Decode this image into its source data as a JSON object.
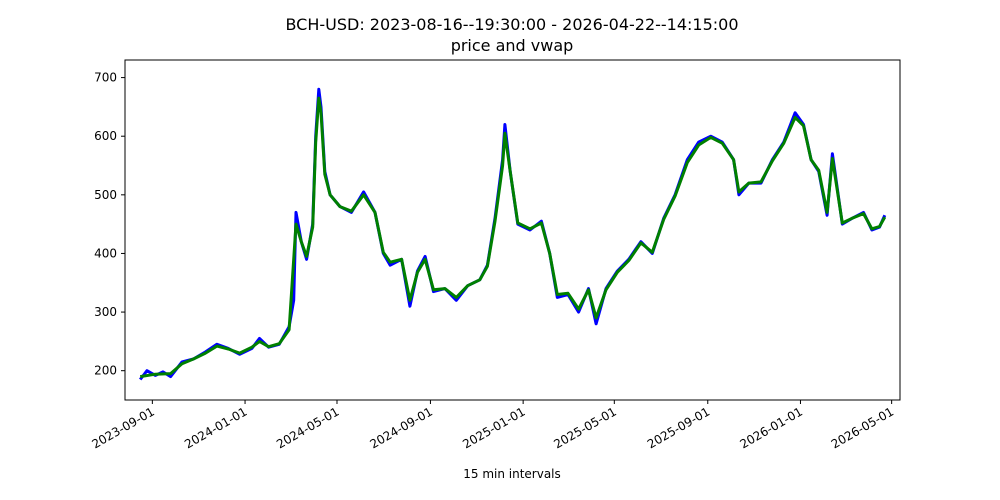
{
  "chart_data": {
    "type": "line",
    "title": "BCH-USD: 2023-08-16--19:30:00 - 2026-04-22--14:15:00",
    "subtitle": "price and vwap",
    "xlabel": "15 min intervals",
    "ylabel": "",
    "x_range": [
      "2023-08-16",
      "2026-04-22"
    ],
    "xlim": [
      "2023-07-27",
      "2026-05-12"
    ],
    "ylim": [
      150,
      730
    ],
    "x_ticks": [
      "2023-09-01",
      "2024-01-01",
      "2024-05-01",
      "2024-09-01",
      "2025-01-01",
      "2025-05-01",
      "2025-09-01",
      "2026-01-01",
      "2026-05-01"
    ],
    "y_ticks": [
      200,
      300,
      400,
      500,
      600,
      700
    ],
    "grid": false,
    "legend": "none",
    "series": [
      {
        "color": "#0000ff",
        "role": "price",
        "points": [
          [
            "2023-08-16",
            185
          ],
          [
            "2023-08-25",
            200
          ],
          [
            "2023-09-05",
            192
          ],
          [
            "2023-09-15",
            198
          ],
          [
            "2023-09-25",
            190
          ],
          [
            "2023-10-10",
            215
          ],
          [
            "2023-10-25",
            220
          ],
          [
            "2023-11-10",
            232
          ],
          [
            "2023-11-25",
            245
          ],
          [
            "2023-12-10",
            238
          ],
          [
            "2023-12-25",
            228
          ],
          [
            "2024-01-10",
            238
          ],
          [
            "2024-01-20",
            255
          ],
          [
            "2024-02-01",
            240
          ],
          [
            "2024-02-15",
            245
          ],
          [
            "2024-02-28",
            275
          ],
          [
            "2024-03-05",
            320
          ],
          [
            "2024-03-08",
            470
          ],
          [
            "2024-03-15",
            420
          ],
          [
            "2024-03-22",
            390
          ],
          [
            "2024-03-30",
            450
          ],
          [
            "2024-04-03",
            600
          ],
          [
            "2024-04-07",
            680
          ],
          [
            "2024-04-10",
            650
          ],
          [
            "2024-04-15",
            540
          ],
          [
            "2024-04-22",
            500
          ],
          [
            "2024-05-05",
            480
          ],
          [
            "2024-05-20",
            470
          ],
          [
            "2024-06-05",
            505
          ],
          [
            "2024-06-20",
            470
          ],
          [
            "2024-07-01",
            400
          ],
          [
            "2024-07-10",
            380
          ],
          [
            "2024-07-25",
            390
          ],
          [
            "2024-08-05",
            310
          ],
          [
            "2024-08-15",
            370
          ],
          [
            "2024-08-25",
            395
          ],
          [
            "2024-09-05",
            335
          ],
          [
            "2024-09-20",
            340
          ],
          [
            "2024-10-05",
            320
          ],
          [
            "2024-10-20",
            345
          ],
          [
            "2024-11-05",
            355
          ],
          [
            "2024-11-15",
            380
          ],
          [
            "2024-11-25",
            460
          ],
          [
            "2024-12-05",
            560
          ],
          [
            "2024-12-08",
            620
          ],
          [
            "2024-12-15",
            540
          ],
          [
            "2024-12-25",
            450
          ],
          [
            "2025-01-10",
            440
          ],
          [
            "2025-01-25",
            455
          ],
          [
            "2025-02-05",
            400
          ],
          [
            "2025-02-15",
            325
          ],
          [
            "2025-03-01",
            330
          ],
          [
            "2025-03-15",
            300
          ],
          [
            "2025-03-28",
            340
          ],
          [
            "2025-04-07",
            280
          ],
          [
            "2025-04-20",
            340
          ],
          [
            "2025-05-05",
            370
          ],
          [
            "2025-05-20",
            390
          ],
          [
            "2025-06-05",
            420
          ],
          [
            "2025-06-20",
            400
          ],
          [
            "2025-07-05",
            460
          ],
          [
            "2025-07-20",
            500
          ],
          [
            "2025-08-05",
            560
          ],
          [
            "2025-08-20",
            590
          ],
          [
            "2025-09-05",
            600
          ],
          [
            "2025-09-20",
            590
          ],
          [
            "2025-10-05",
            560
          ],
          [
            "2025-10-12",
            500
          ],
          [
            "2025-10-25",
            520
          ],
          [
            "2025-11-10",
            520
          ],
          [
            "2025-11-25",
            560
          ],
          [
            "2025-12-10",
            590
          ],
          [
            "2025-12-25",
            640
          ],
          [
            "2026-01-05",
            620
          ],
          [
            "2026-01-15",
            560
          ],
          [
            "2026-01-25",
            540
          ],
          [
            "2026-02-05",
            465
          ],
          [
            "2026-02-12",
            570
          ],
          [
            "2026-02-25",
            450
          ],
          [
            "2026-03-10",
            460
          ],
          [
            "2026-03-25",
            470
          ],
          [
            "2026-04-05",
            440
          ],
          [
            "2026-04-15",
            445
          ],
          [
            "2026-04-22",
            465
          ]
        ]
      },
      {
        "color": "#008000",
        "role": "vwap",
        "points": [
          [
            "2023-08-16",
            190
          ],
          [
            "2023-09-05",
            194
          ],
          [
            "2023-09-25",
            195
          ],
          [
            "2023-10-10",
            212
          ],
          [
            "2023-10-25",
            220
          ],
          [
            "2023-11-10",
            230
          ],
          [
            "2023-11-25",
            242
          ],
          [
            "2023-12-10",
            237
          ],
          [
            "2023-12-25",
            230
          ],
          [
            "2024-01-10",
            240
          ],
          [
            "2024-01-20",
            250
          ],
          [
            "2024-02-01",
            241
          ],
          [
            "2024-02-15",
            246
          ],
          [
            "2024-02-28",
            270
          ],
          [
            "2024-03-08",
            450
          ],
          [
            "2024-03-15",
            420
          ],
          [
            "2024-03-22",
            395
          ],
          [
            "2024-03-30",
            445
          ],
          [
            "2024-04-03",
            590
          ],
          [
            "2024-04-07",
            665
          ],
          [
            "2024-04-10",
            640
          ],
          [
            "2024-04-15",
            535
          ],
          [
            "2024-04-22",
            500
          ],
          [
            "2024-05-05",
            480
          ],
          [
            "2024-05-20",
            472
          ],
          [
            "2024-06-05",
            500
          ],
          [
            "2024-06-20",
            470
          ],
          [
            "2024-07-01",
            402
          ],
          [
            "2024-07-10",
            385
          ],
          [
            "2024-07-25",
            390
          ],
          [
            "2024-08-05",
            320
          ],
          [
            "2024-08-15",
            368
          ],
          [
            "2024-08-25",
            390
          ],
          [
            "2024-09-05",
            338
          ],
          [
            "2024-09-20",
            340
          ],
          [
            "2024-10-05",
            325
          ],
          [
            "2024-10-20",
            345
          ],
          [
            "2024-11-05",
            355
          ],
          [
            "2024-11-15",
            378
          ],
          [
            "2024-11-25",
            455
          ],
          [
            "2024-12-05",
            550
          ],
          [
            "2024-12-08",
            605
          ],
          [
            "2024-12-15",
            540
          ],
          [
            "2024-12-25",
            452
          ],
          [
            "2025-01-10",
            442
          ],
          [
            "2025-01-25",
            452
          ],
          [
            "2025-02-05",
            400
          ],
          [
            "2025-02-15",
            330
          ],
          [
            "2025-03-01",
            332
          ],
          [
            "2025-03-15",
            305
          ],
          [
            "2025-03-28",
            338
          ],
          [
            "2025-04-07",
            290
          ],
          [
            "2025-04-20",
            338
          ],
          [
            "2025-05-05",
            368
          ],
          [
            "2025-05-20",
            388
          ],
          [
            "2025-06-05",
            418
          ],
          [
            "2025-06-20",
            402
          ],
          [
            "2025-07-05",
            458
          ],
          [
            "2025-07-20",
            498
          ],
          [
            "2025-08-05",
            555
          ],
          [
            "2025-08-20",
            585
          ],
          [
            "2025-09-05",
            598
          ],
          [
            "2025-09-20",
            588
          ],
          [
            "2025-10-05",
            560
          ],
          [
            "2025-10-12",
            505
          ],
          [
            "2025-10-25",
            520
          ],
          [
            "2025-11-10",
            522
          ],
          [
            "2025-11-25",
            558
          ],
          [
            "2025-12-10",
            588
          ],
          [
            "2025-12-25",
            632
          ],
          [
            "2026-01-05",
            618
          ],
          [
            "2026-01-15",
            560
          ],
          [
            "2026-01-25",
            542
          ],
          [
            "2026-02-05",
            470
          ],
          [
            "2026-02-12",
            562
          ],
          [
            "2026-02-25",
            452
          ],
          [
            "2026-03-10",
            460
          ],
          [
            "2026-03-25",
            468
          ],
          [
            "2026-04-05",
            442
          ],
          [
            "2026-04-15",
            446
          ],
          [
            "2026-04-22",
            462
          ]
        ]
      }
    ]
  }
}
